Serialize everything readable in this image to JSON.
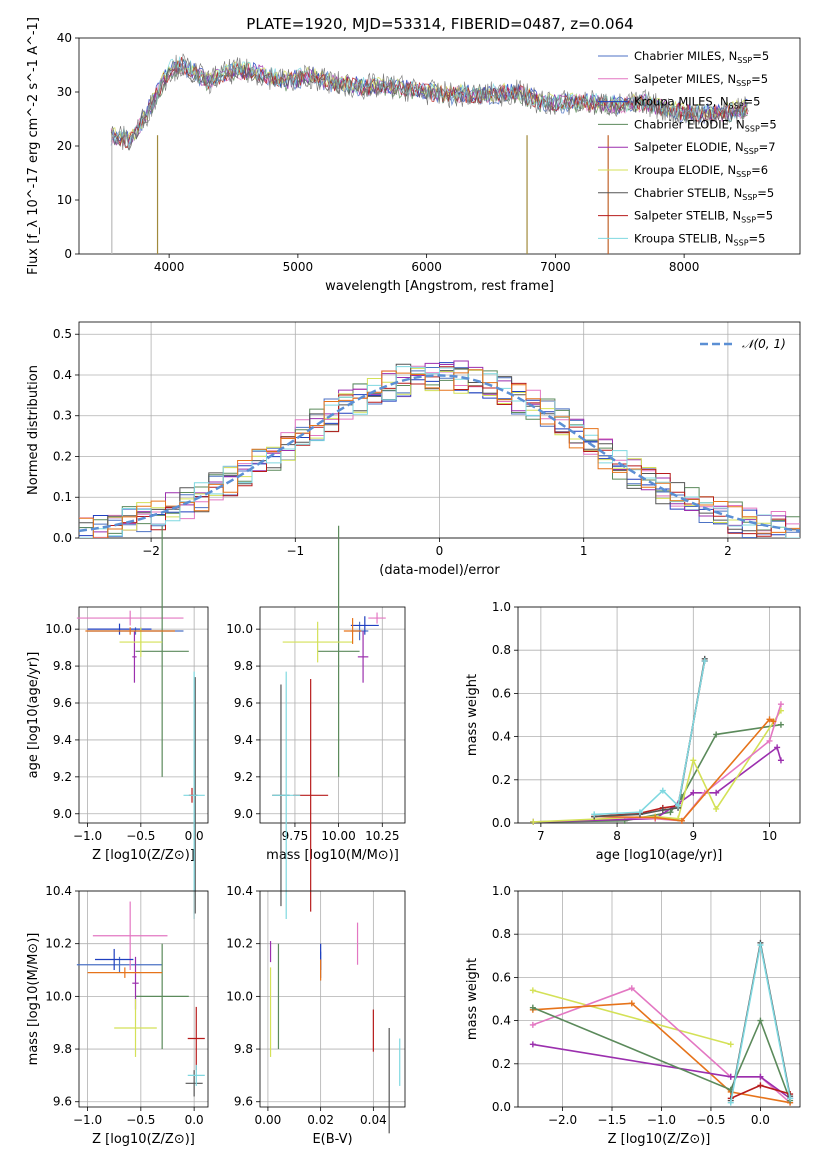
{
  "figure": {
    "title": "PLATE=1920, MJD=53314, FIBERID=0487, z=0.064",
    "colors": {
      "Chabrier MILES": "#4c72c4",
      "Salpeter MILES": "#e377c2",
      "Kroupa MILES": "#1f3fbf",
      "Chabrier ELODIE": "#5b8a5b",
      "Salpeter ELODIE": "#9b2fae",
      "Kroupa ELODIE": "#d4e157",
      "Chabrier STELIB": "#555555",
      "Salpeter STELIB": "#b71c1c",
      "Kroupa STELIB": "#7fd8e0",
      "orange": "#e6731a",
      "normal": "#5b8fd4",
      "data": "#808080"
    }
  },
  "chart_data": [
    {
      "type": "line",
      "title": "PLATE=1920, MJD=53314, FIBERID=0487, z=0.064",
      "xlabel": "wavelength [Angstrom, rest frame]",
      "ylabel": "Flux [f_λ 10^-17 erg cm^-2 s^-1 A^-1]",
      "xlim": [
        3300,
        8900
      ],
      "ylim": [
        0,
        40
      ],
      "xticks": [
        "4000",
        "5000",
        "6000",
        "7000",
        "8000"
      ],
      "yticks": [
        "0",
        "10",
        "20",
        "30",
        "40"
      ],
      "legend": [
        {
          "name": "Chabrier MILES",
          "nssp": "5"
        },
        {
          "name": "Salpeter MILES",
          "nssp": "5"
        },
        {
          "name": "Kroupa MILES",
          "nssp": "5"
        },
        {
          "name": "Chabrier ELODIE",
          "nssp": "5"
        },
        {
          "name": "Salpeter ELODIE",
          "nssp": "7"
        },
        {
          "name": "Kroupa ELODIE",
          "nssp": "6"
        },
        {
          "name": "Chabrier STELIB",
          "nssp": "5"
        },
        {
          "name": "Salpeter STELIB",
          "nssp": "5"
        },
        {
          "name": "Kroupa STELIB",
          "nssp": "5"
        }
      ],
      "legend_placement": "upper-right",
      "grid": false,
      "continuum": {
        "x": [
          3550,
          3700,
          3850,
          4000,
          4100,
          4300,
          4500,
          4700,
          4900,
          5100,
          5300,
          5500,
          5700,
          5900,
          6100,
          6300,
          6500,
          6700,
          6900,
          7100,
          7300,
          7500,
          7700,
          7900,
          8100,
          8300,
          8500
        ],
        "y": [
          22,
          21,
          27,
          34,
          35,
          32,
          34,
          33.5,
          32,
          33,
          31.5,
          31,
          31,
          30.5,
          29.5,
          29.5,
          29.5,
          30,
          28,
          28,
          28,
          27.5,
          28,
          26.5,
          26,
          26,
          27
        ]
      }
    },
    {
      "type": "step",
      "xlabel": "(data-model)/error",
      "ylabel": "Normed distribution",
      "xlim": [
        -2.5,
        2.5
      ],
      "ylim": [
        0,
        0.53
      ],
      "xticks": [
        "−2",
        "−1",
        "0",
        "1",
        "2"
      ],
      "yticks": [
        "0.0",
        "0.1",
        "0.2",
        "0.3",
        "0.4",
        "0.5"
      ],
      "legend": [
        {
          "name": "𝒩(0, 1)"
        }
      ],
      "legend_placement": "upper-right",
      "grid": true
    },
    {
      "type": "scatter",
      "xlabel": "Z [log10(Z/Z⊙)]",
      "ylabel": "age [log10(age/yr)]",
      "xlim": [
        -1.08,
        0.13
      ],
      "ylim": [
        8.95,
        10.12
      ],
      "xticks": [
        "−1.0",
        "−0.5",
        "0.0"
      ],
      "yticks": [
        "9.0",
        "9.2",
        "9.4",
        "9.6",
        "9.8",
        "10.0"
      ],
      "grid": true,
      "points": [
        {
          "series": "Chabrier MILES",
          "x": -0.55,
          "y": 9.99,
          "xerr": 0.45,
          "yerr": 0.02
        },
        {
          "series": "Salpeter MILES",
          "x": -0.6,
          "y": 10.06,
          "xerr": 0.5,
          "yerr": 0.04
        },
        {
          "series": "Kroupa MILES",
          "x": -0.7,
          "y": 10.0,
          "xerr": 0.3,
          "yerr": 0.03
        },
        {
          "series": "Chabrier ELODIE",
          "x": -0.3,
          "y": 9.88,
          "xerr": 0.25,
          "yerr": 0.68
        },
        {
          "series": "Salpeter ELODIE",
          "x": -0.56,
          "y": 9.85,
          "xerr": 0.02,
          "yerr": 0.14
        },
        {
          "series": "Kroupa ELODIE",
          "x": -0.5,
          "y": 9.93,
          "xerr": 0.2,
          "yerr": 0.08
        },
        {
          "series": "Chabrier STELIB",
          "x": 0.01,
          "y": 9.1,
          "xerr": 0.02,
          "yerr": 0.64
        },
        {
          "series": "Salpeter STELIB",
          "x": -0.02,
          "y": 9.1,
          "xerr": 0.03,
          "yerr": 0.04
        },
        {
          "series": "Kroupa STELIB",
          "x": 0.0,
          "y": 9.1,
          "xerr": 0.1,
          "yerr": 0.67
        },
        {
          "series": "orange",
          "x": -0.6,
          "y": 9.99,
          "xerr": 0.42,
          "yerr": 0.02
        }
      ]
    },
    {
      "type": "scatter",
      "xlabel": "mass [log10(M/M⊙)]",
      "ylabel": "",
      "xlim": [
        9.55,
        10.38
      ],
      "ylim": [
        8.95,
        10.12
      ],
      "xticks": [
        "9.75",
        "10.00",
        "10.25"
      ],
      "yticks": [
        "9.0",
        "9.2",
        "9.4",
        "9.6",
        "9.8",
        "10.0"
      ],
      "grid": true,
      "points": [
        {
          "series": "Chabrier MILES",
          "x": 10.12,
          "y": 9.99,
          "xerr": 0.05,
          "yerr": 0.05
        },
        {
          "series": "Salpeter MILES",
          "x": 10.22,
          "y": 10.06,
          "xerr": 0.05,
          "yerr": 0.03
        },
        {
          "series": "Kroupa MILES",
          "x": 10.15,
          "y": 10.02,
          "xerr": 0.08,
          "yerr": 0.05
        },
        {
          "series": "Chabrier ELODIE",
          "x": 10.0,
          "y": 9.88,
          "xerr": 0.12,
          "yerr": 0.68
        },
        {
          "series": "Salpeter ELODIE",
          "x": 10.14,
          "y": 9.85,
          "xerr": 0.03,
          "yerr": 0.14
        },
        {
          "series": "Kroupa ELODIE",
          "x": 9.88,
          "y": 9.93,
          "xerr": 0.2,
          "yerr": 0.11
        },
        {
          "series": "Chabrier STELIB",
          "x": 9.67,
          "y": 9.1,
          "xerr": 0.05,
          "yerr": 0.6
        },
        {
          "series": "Salpeter STELIB",
          "x": 9.84,
          "y": 9.1,
          "xerr": 0.1,
          "yerr": 0.63
        },
        {
          "series": "Kroupa STELIB",
          "x": 9.7,
          "y": 9.1,
          "xerr": 0.08,
          "yerr": 0.67
        },
        {
          "series": "orange",
          "x": 10.08,
          "y": 9.99,
          "xerr": 0.05,
          "yerr": 0.07
        }
      ]
    },
    {
      "type": "line",
      "xlabel": "age [log10(age/yr)]",
      "ylabel": "mass weight",
      "xlim": [
        6.7,
        10.4
      ],
      "ylim": [
        0,
        1
      ],
      "xticks": [
        "7",
        "8",
        "9",
        "10"
      ],
      "yticks": [
        "0.0",
        "0.2",
        "0.4",
        "0.6",
        "0.8",
        "1.0"
      ],
      "grid": true,
      "series": [
        {
          "name": "Chabrier ELODIE",
          "x": [
            6.9,
            8.1,
            8.7,
            8.85,
            9.3,
            10.15
          ],
          "y": [
            0.005,
            0.01,
            0.05,
            0.12,
            0.41,
            0.455
          ]
        },
        {
          "name": "Salpeter ELODIE",
          "x": [
            6.9,
            8.5,
            8.8,
            9.0,
            9.3,
            10.1,
            10.15
          ],
          "y": [
            0.005,
            0.02,
            0.09,
            0.14,
            0.14,
            0.35,
            0.29
          ]
        },
        {
          "name": "Kroupa ELODIE",
          "x": [
            6.9,
            8.5,
            8.8,
            9.0,
            9.3,
            10.15
          ],
          "y": [
            0.005,
            0.03,
            0.02,
            0.29,
            0.065,
            0.52
          ]
        },
        {
          "name": "Salpeter MILES",
          "x": [
            7.7,
            8.5,
            8.85,
            9.15,
            10.0,
            10.15
          ],
          "y": [
            0.03,
            0.02,
            0.01,
            0.14,
            0.38,
            0.55
          ]
        },
        {
          "name": "orange",
          "x": [
            7.7,
            8.5,
            8.85,
            10.0,
            10.05
          ],
          "y": [
            0.03,
            0.025,
            0.01,
            0.48,
            0.47
          ]
        },
        {
          "name": "Salpeter STELIB",
          "x": [
            7.7,
            8.3,
            8.6,
            8.8,
            9.15
          ],
          "y": [
            0.03,
            0.045,
            0.07,
            0.08,
            0.75
          ]
        },
        {
          "name": "Chabrier STELIB",
          "x": [
            7.7,
            8.3,
            8.6,
            8.8,
            9.15
          ],
          "y": [
            0.03,
            0.04,
            0.06,
            0.07,
            0.76
          ]
        },
        {
          "name": "Kroupa STELIB",
          "x": [
            7.7,
            8.3,
            8.6,
            8.8,
            9.15
          ],
          "y": [
            0.04,
            0.05,
            0.15,
            0.08,
            0.75
          ]
        }
      ]
    },
    {
      "type": "scatter",
      "xlabel": "Z [log10(Z/Z⊙)]",
      "ylabel": "mass [log10(M/M⊙)]",
      "xlim": [
        -1.08,
        0.13
      ],
      "ylim": [
        9.58,
        10.4
      ],
      "xticks": [
        "−1.0",
        "−0.5",
        "0.0"
      ],
      "yticks": [
        "9.6",
        "9.8",
        "10.0",
        "10.2",
        "10.4"
      ],
      "grid": true,
      "points": [
        {
          "series": "Chabrier MILES",
          "x": -0.7,
          "y": 10.12,
          "xerr": 0.4,
          "yerr": 0.03
        },
        {
          "series": "Salpeter MILES",
          "x": -0.6,
          "y": 10.23,
          "xerr": 0.35,
          "yerr": 0.13
        },
        {
          "series": "Kroupa MILES",
          "x": -0.75,
          "y": 10.14,
          "xerr": 0.18,
          "yerr": 0.04
        },
        {
          "series": "Chabrier ELODIE",
          "x": -0.3,
          "y": 10.0,
          "xerr": 0.25,
          "yerr": 0.2
        },
        {
          "series": "Salpeter ELODIE",
          "x": -0.55,
          "y": 10.05,
          "xerr": 0.03,
          "yerr": 0.1
        },
        {
          "series": "Kroupa ELODIE",
          "x": -0.55,
          "y": 9.88,
          "xerr": 0.2,
          "yerr": 0.11
        },
        {
          "series": "Chabrier STELIB",
          "x": 0.0,
          "y": 9.67,
          "xerr": 0.08,
          "yerr": 0.05
        },
        {
          "series": "Salpeter STELIB",
          "x": 0.02,
          "y": 9.84,
          "xerr": 0.08,
          "yerr": 0.12
        },
        {
          "series": "Kroupa STELIB",
          "x": 0.02,
          "y": 9.7,
          "xerr": 0.08,
          "yerr": 0.04
        },
        {
          "series": "orange",
          "x": -0.65,
          "y": 10.09,
          "xerr": 0.35,
          "yerr": 0.02
        }
      ]
    },
    {
      "type": "scatter",
      "xlabel": "E(B-V)",
      "ylabel": "",
      "xlim": [
        -0.003,
        0.052
      ],
      "ylim": [
        9.58,
        10.4
      ],
      "xticks": [
        "0.00",
        "0.02",
        "0.04"
      ],
      "yticks": [
        "9.6",
        "9.8",
        "10.0",
        "10.2",
        "10.4"
      ],
      "grid": true,
      "points": [
        {
          "series": "Chabrier MILES",
          "x": 0.02,
          "y": 10.12,
          "xerr": 0,
          "yerr": 0.05
        },
        {
          "series": "Salpeter MILES",
          "x": 0.034,
          "y": 10.2,
          "xerr": 0,
          "yerr": 0.08
        },
        {
          "series": "Kroupa MILES",
          "x": 0.02,
          "y": 10.15,
          "xerr": 0,
          "yerr": 0.05
        },
        {
          "series": "Chabrier ELODIE",
          "x": 0.004,
          "y": 10.0,
          "xerr": 0,
          "yerr": 0.2
        },
        {
          "series": "Salpeter ELODIE",
          "x": 0.001,
          "y": 10.17,
          "xerr": 0,
          "yerr": 0.04
        },
        {
          "series": "Kroupa ELODIE",
          "x": 0.001,
          "y": 9.94,
          "xerr": 0,
          "yerr": 0.17
        },
        {
          "series": "Chabrier STELIB",
          "x": 0.046,
          "y": 9.68,
          "xerr": 0,
          "yerr": 0.2
        },
        {
          "series": "Salpeter STELIB",
          "x": 0.04,
          "y": 9.87,
          "xerr": 0,
          "yerr": 0.08
        },
        {
          "series": "Kroupa STELIB",
          "x": 0.05,
          "y": 9.75,
          "xerr": 0,
          "yerr": 0.09
        },
        {
          "series": "orange",
          "x": 0.02,
          "y": 10.1,
          "xerr": 0,
          "yerr": 0.04
        }
      ]
    },
    {
      "type": "line",
      "xlabel": "Z [log10(Z/Z⊙)]",
      "ylabel": "mass weight",
      "xlim": [
        -2.45,
        0.4
      ],
      "ylim": [
        0,
        1
      ],
      "xticks": [
        "−2.0",
        "−1.5",
        "−1.0",
        "−0.5",
        "0.0"
      ],
      "yticks": [
        "0.0",
        "0.2",
        "0.4",
        "0.6",
        "0.8",
        "1.0"
      ],
      "grid": true,
      "series": [
        {
          "name": "Kroupa ELODIE",
          "x": [
            -2.3,
            -0.3
          ],
          "y": [
            0.54,
            0.29
          ]
        },
        {
          "name": "Salpeter MILES",
          "x": [
            -2.3,
            -1.3,
            -0.3,
            0.0,
            0.3
          ],
          "y": [
            0.38,
            0.55,
            0.14,
            0.14,
            0.02
          ]
        },
        {
          "name": "orange",
          "x": [
            -2.3,
            -1.3,
            -0.3,
            0.3
          ],
          "y": [
            0.45,
            0.48,
            0.07,
            0.02
          ]
        },
        {
          "name": "Salpeter ELODIE",
          "x": [
            -2.3,
            -0.3,
            0.0,
            0.3
          ],
          "y": [
            0.29,
            0.14,
            0.14,
            0.04
          ]
        },
        {
          "name": "Chabrier ELODIE",
          "x": [
            -2.3,
            -0.3,
            0.0,
            0.3
          ],
          "y": [
            0.46,
            0.08,
            0.4,
            0.03
          ]
        },
        {
          "name": "Salpeter STELIB",
          "x": [
            -0.3,
            0.0,
            0.3
          ],
          "y": [
            0.04,
            0.1,
            0.06
          ]
        },
        {
          "name": "Chabrier STELIB",
          "x": [
            -0.3,
            0.0,
            0.3
          ],
          "y": [
            0.03,
            0.76,
            0.05
          ]
        },
        {
          "name": "Kroupa STELIB",
          "x": [
            -0.3,
            0.0,
            0.3
          ],
          "y": [
            0.02,
            0.75,
            0.04
          ]
        }
      ]
    }
  ]
}
